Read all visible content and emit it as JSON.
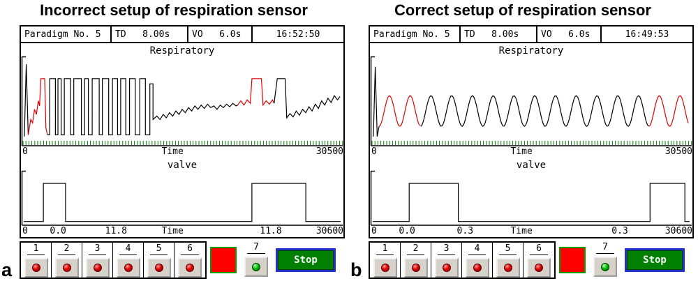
{
  "panels": [
    {
      "caption": "Incorrect setup of respiration sensor",
      "label": "a",
      "status": {
        "paradigm": "Paradigm No. 5",
        "td": "TD   8.00s",
        "vo": "VO   6.0s",
        "clock": "16:52:50"
      }
    },
    {
      "caption": "Correct setup of respiration sensor",
      "label": "b",
      "status": {
        "paradigm": "Paradigm No. 5",
        "td": "TD   8.00s",
        "vo": "VO   6.0s",
        "clock": "16:49:53"
      }
    }
  ],
  "controls": {
    "numbers": [
      "1",
      "2",
      "3",
      "4",
      "5",
      "6"
    ],
    "number7": "7",
    "stop_label": "Stop",
    "led_red": "#e00000",
    "led_green": "#00c000",
    "indicator_red": "#ff0000",
    "stop_green": "#008000",
    "stop_border_blue": "#2233cc"
  },
  "colors": {
    "trace_black": "#000000",
    "trace_red": "#dd0000",
    "axis_tick_green": "#007a00"
  },
  "chart_data": [
    {
      "id": "a-resp",
      "type": "line",
      "title": "Respiratory",
      "xlabel": "Time",
      "x_range": [
        0,
        30500
      ],
      "green_ticks": true,
      "grid": false,
      "x_ticks": [
        {
          "label": "0",
          "x": 0
        },
        {
          "label": "Time",
          "x": 0.47
        },
        {
          "label": "30500",
          "x": 1
        }
      ],
      "segments": [
        {
          "color": "#000000",
          "points": [
            [
              0.002,
              0.1
            ],
            [
              0.008,
              0.95
            ],
            [
              0.014,
              0.12
            ]
          ]
        },
        {
          "color": "#dd0000",
          "points": [
            [
              0.014,
              0.12
            ],
            [
              0.022,
              0.3
            ],
            [
              0.028,
              0.26
            ],
            [
              0.034,
              0.42
            ],
            [
              0.04,
              0.36
            ],
            [
              0.046,
              0.52
            ],
            [
              0.05,
              0.46
            ],
            [
              0.054,
              0.78
            ],
            [
              0.066,
              0.78
            ],
            [
              0.07,
              0.2
            ],
            [
              0.075,
              0.12
            ]
          ]
        },
        {
          "color": "#000000",
          "points": [
            [
              0.075,
              0.12
            ],
            [
              0.082,
              0.12
            ],
            [
              0.082,
              0.78
            ],
            [
              0.1,
              0.78
            ],
            [
              0.1,
              0.12
            ],
            [
              0.108,
              0.12
            ],
            [
              0.108,
              0.78
            ],
            [
              0.118,
              0.78
            ],
            [
              0.118,
              0.12
            ],
            [
              0.128,
              0.12
            ],
            [
              0.128,
              0.78
            ],
            [
              0.148,
              0.78
            ],
            [
              0.148,
              0.12
            ],
            [
              0.158,
              0.12
            ],
            [
              0.158,
              0.78
            ],
            [
              0.182,
              0.78
            ],
            [
              0.182,
              0.12
            ],
            [
              0.192,
              0.12
            ],
            [
              0.192,
              0.78
            ],
            [
              0.204,
              0.78
            ],
            [
              0.204,
              0.12
            ],
            [
              0.216,
              0.12
            ],
            [
              0.216,
              0.78
            ],
            [
              0.238,
              0.78
            ],
            [
              0.238,
              0.12
            ],
            [
              0.248,
              0.12
            ],
            [
              0.248,
              0.78
            ],
            [
              0.268,
              0.78
            ],
            [
              0.268,
              0.12
            ],
            [
              0.28,
              0.12
            ],
            [
              0.28,
              0.78
            ],
            [
              0.296,
              0.78
            ],
            [
              0.296,
              0.12
            ],
            [
              0.306,
              0.12
            ],
            [
              0.306,
              0.78
            ],
            [
              0.322,
              0.78
            ],
            [
              0.322,
              0.12
            ],
            [
              0.334,
              0.12
            ],
            [
              0.334,
              0.78
            ],
            [
              0.352,
              0.78
            ],
            [
              0.352,
              0.12
            ],
            [
              0.366,
              0.12
            ],
            [
              0.366,
              0.78
            ],
            [
              0.384,
              0.78
            ],
            [
              0.384,
              0.12
            ],
            [
              0.398,
              0.12
            ],
            [
              0.398,
              0.72
            ],
            [
              0.408,
              0.72
            ],
            [
              0.408,
              0.3
            ],
            [
              0.42,
              0.34
            ],
            [
              0.43,
              0.3
            ],
            [
              0.44,
              0.36
            ],
            [
              0.45,
              0.32
            ],
            [
              0.46,
              0.38
            ],
            [
              0.47,
              0.34
            ],
            [
              0.48,
              0.4
            ],
            [
              0.49,
              0.36
            ],
            [
              0.5,
              0.42
            ],
            [
              0.51,
              0.38
            ],
            [
              0.52,
              0.44
            ],
            [
              0.53,
              0.4
            ],
            [
              0.54,
              0.46
            ],
            [
              0.55,
              0.42
            ],
            [
              0.56,
              0.47
            ],
            [
              0.57,
              0.43
            ],
            [
              0.58,
              0.48
            ],
            [
              0.59,
              0.44
            ],
            [
              0.6,
              0.46
            ],
            [
              0.61,
              0.42
            ],
            [
              0.62,
              0.47
            ],
            [
              0.63,
              0.44
            ],
            [
              0.64,
              0.48
            ],
            [
              0.65,
              0.45
            ],
            [
              0.66,
              0.49
            ],
            [
              0.67,
              0.46
            ],
            [
              0.675,
              0.47
            ]
          ]
        },
        {
          "color": "#dd0000",
          "points": [
            [
              0.675,
              0.47
            ],
            [
              0.685,
              0.52
            ],
            [
              0.695,
              0.47
            ],
            [
              0.705,
              0.53
            ],
            [
              0.715,
              0.49
            ],
            [
              0.72,
              0.78
            ],
            [
              0.75,
              0.78
            ],
            [
              0.755,
              0.47
            ],
            [
              0.765,
              0.52
            ],
            [
              0.775,
              0.48
            ],
            [
              0.785,
              0.53
            ],
            [
              0.79,
              0.49
            ]
          ]
        },
        {
          "color": "#000000",
          "points": [
            [
              0.79,
              0.49
            ],
            [
              0.8,
              0.78
            ],
            [
              0.825,
              0.78
            ],
            [
              0.83,
              0.32
            ],
            [
              0.84,
              0.37
            ],
            [
              0.85,
              0.33
            ],
            [
              0.86,
              0.4
            ],
            [
              0.87,
              0.35
            ],
            [
              0.88,
              0.42
            ],
            [
              0.89,
              0.38
            ],
            [
              0.9,
              0.45
            ],
            [
              0.91,
              0.4
            ],
            [
              0.92,
              0.48
            ],
            [
              0.93,
              0.43
            ],
            [
              0.94,
              0.52
            ],
            [
              0.95,
              0.47
            ],
            [
              0.96,
              0.55
            ],
            [
              0.97,
              0.5
            ],
            [
              0.98,
              0.58
            ],
            [
              0.99,
              0.53
            ],
            [
              0.998,
              0.57
            ]
          ]
        }
      ]
    },
    {
      "id": "a-valve",
      "type": "line",
      "title": "valve",
      "xlabel": "Time",
      "x_range": [
        0,
        30600
      ],
      "green_ticks": false,
      "grid": false,
      "x_ticks": [
        {
          "label": "0",
          "x": 0
        },
        {
          "label": "0.0",
          "x": 0.115
        },
        {
          "label": "11.8",
          "x": 0.295
        },
        {
          "label": "Time",
          "x": 0.47
        },
        {
          "label": "11.8",
          "x": 0.775
        },
        {
          "label": "30600",
          "x": 1
        }
      ],
      "segments": [
        {
          "color": "#000000",
          "points": [
            [
              0.0,
              0.06
            ],
            [
              0.062,
              0.06
            ],
            [
              0.062,
              0.82
            ],
            [
              0.132,
              0.82
            ],
            [
              0.132,
              0.06
            ],
            [
              0.72,
              0.06
            ],
            [
              0.72,
              0.82
            ],
            [
              0.89,
              0.82
            ],
            [
              0.89,
              0.06
            ],
            [
              1.0,
              0.06
            ]
          ]
        }
      ]
    },
    {
      "id": "b-resp",
      "type": "line",
      "title": "Respiratory",
      "xlabel": "Time",
      "x_range": [
        0,
        30500
      ],
      "green_ticks": true,
      "grid": false,
      "x_ticks": [
        {
          "label": "0",
          "x": 0
        },
        {
          "label": "Time",
          "x": 0.47
        },
        {
          "label": "30500",
          "x": 1
        }
      ],
      "segments": [
        {
          "color": "#000000",
          "points": [
            [
              0.002,
              0.1
            ],
            [
              0.008,
              0.92
            ],
            [
              0.014,
              0.1
            ],
            [
              0.02,
              0.22
            ]
          ]
        },
        {
          "color": "#dd0000",
          "sine": {
            "x0": 0.02,
            "x1": 0.151,
            "period": 0.0655,
            "center": 0.4,
            "amp": 0.18,
            "phase": -1.5708,
            "step": 0.004
          }
        },
        {
          "color": "#000000",
          "sine": {
            "x0": 0.151,
            "x1": 0.8715,
            "period": 0.0655,
            "center": 0.4,
            "amp": 0.18,
            "phase": -1.5708,
            "step": 0.004
          }
        },
        {
          "color": "#dd0000",
          "sine": {
            "x0": 0.8715,
            "x1": 0.999,
            "period": 0.0655,
            "center": 0.4,
            "amp": 0.18,
            "phase": -1.5708,
            "step": 0.004
          }
        }
      ]
    },
    {
      "id": "b-valve",
      "type": "line",
      "title": "valve",
      "xlabel": "Time",
      "x_range": [
        0,
        30600
      ],
      "green_ticks": false,
      "grid": false,
      "x_ticks": [
        {
          "label": "0",
          "x": 0
        },
        {
          "label": "0.0",
          "x": 0.115
        },
        {
          "label": "0.3",
          "x": 0.295
        },
        {
          "label": "Time",
          "x": 0.47
        },
        {
          "label": "0.3",
          "x": 0.775
        },
        {
          "label": "30600",
          "x": 1
        }
      ],
      "segments": [
        {
          "color": "#000000",
          "points": [
            [
              0.0,
              0.06
            ],
            [
              0.115,
              0.06
            ],
            [
              0.115,
              0.82
            ],
            [
              0.27,
              0.82
            ],
            [
              0.27,
              0.06
            ],
            [
              0.875,
              0.06
            ],
            [
              0.875,
              0.82
            ],
            [
              0.985,
              0.82
            ],
            [
              0.985,
              0.06
            ],
            [
              1.0,
              0.06
            ]
          ]
        }
      ]
    }
  ]
}
